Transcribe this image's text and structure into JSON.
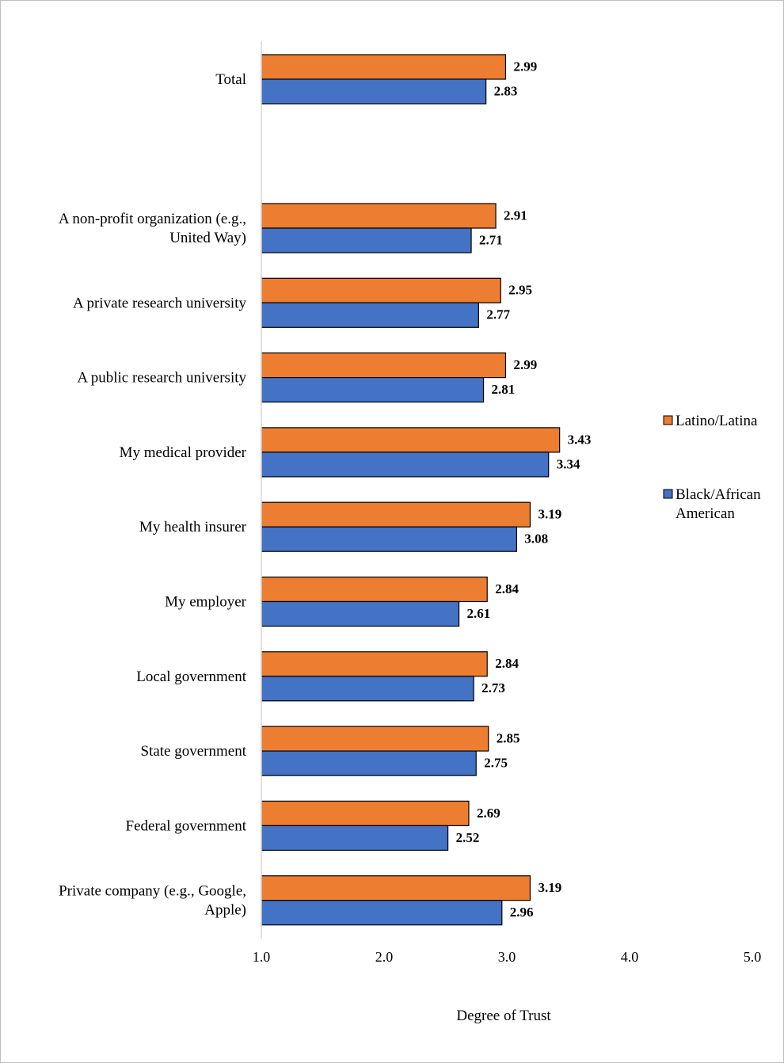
{
  "chart_data": {
    "type": "bar",
    "orientation": "horizontal",
    "categories": [
      [
        "Total"
      ],
      [
        "A non-profit organization (e.g.,",
        "United Way)"
      ],
      [
        "A private research university"
      ],
      [
        "A public research university"
      ],
      [
        "My medical provider"
      ],
      [
        "My health insurer"
      ],
      [
        "My employer"
      ],
      [
        "Local government"
      ],
      [
        "State government"
      ],
      [
        "Federal government"
      ],
      [
        "Private company (e.g., Google,",
        "Apple)"
      ]
    ],
    "series": [
      {
        "name": "Latino/Latina",
        "color": "#ED7D31",
        "values": [
          2.99,
          2.91,
          2.95,
          2.99,
          3.43,
          3.19,
          2.84,
          2.84,
          2.85,
          2.69,
          3.19
        ],
        "labels": [
          "2.99",
          "2.91",
          "2.95",
          "2.99",
          "3.43",
          "3.19",
          "2.84",
          "2.84",
          "2.85",
          "2.69",
          "3.19"
        ]
      },
      {
        "name": [
          "Black/African",
          "American"
        ],
        "color": "#4472C4",
        "values": [
          2.83,
          2.71,
          2.77,
          2.81,
          3.34,
          3.08,
          2.61,
          2.73,
          2.75,
          2.52,
          2.96
        ],
        "labels": [
          "2.83",
          "2.71",
          "2.77",
          "2.81",
          "3.34",
          "3.08",
          "2.61",
          "2.73",
          "2.75",
          "2.52",
          "2.96"
        ]
      }
    ],
    "xlim": [
      1.0,
      5.0
    ],
    "xticks": [
      1.0,
      2.0,
      3.0,
      4.0,
      5.0
    ],
    "xtick_labels": [
      "1.0",
      "2.0",
      "3.0",
      "4.0",
      "5.0"
    ],
    "xlabel": "Degree of Trust",
    "ylabel": "",
    "title": "",
    "grid": false,
    "legend_position": "right"
  }
}
